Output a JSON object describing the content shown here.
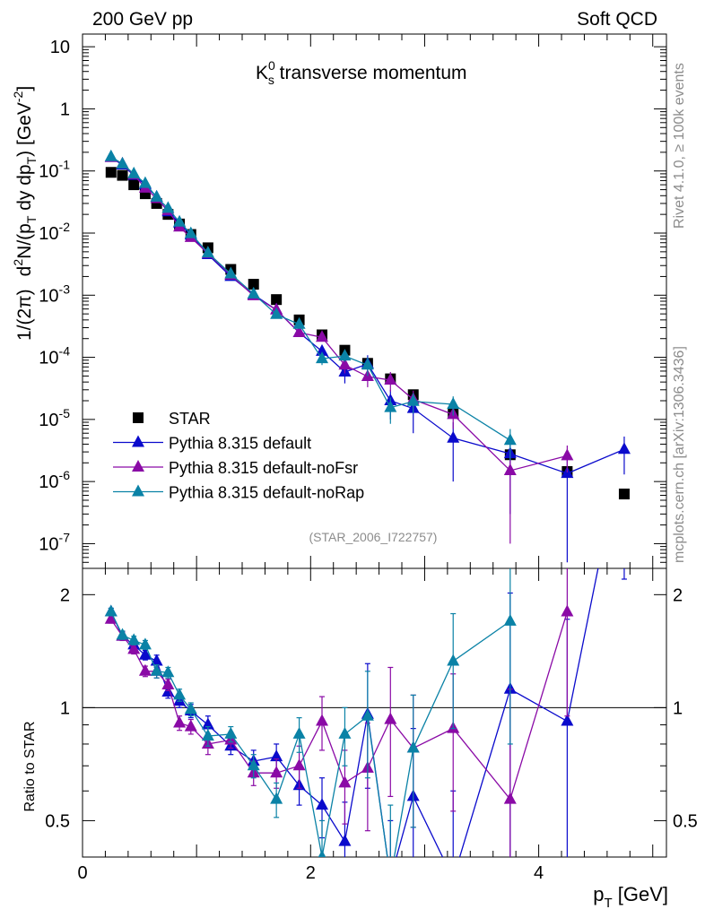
{
  "header": {
    "left": "200 GeV pp",
    "right": "Soft QCD"
  },
  "side_labels": {
    "rivet": "Rivet 4.1.0, ≥ 100k events",
    "mcplots": "mcplots.cern.ch [arXiv:1306.3436]"
  },
  "watermark": "(STAR_2006_I722757)",
  "colors": {
    "star": "#000000",
    "default": "#0a0acc",
    "noFsr": "#8a0aa6",
    "noRap": "#0a82a6"
  },
  "chart_data": [
    {
      "type": "scatter",
      "panel": "main",
      "title": "Ks0 transverse momentum",
      "title_parts": {
        "base": "K",
        "sup": "0",
        "sub": "s",
        "rest": " transverse momentum"
      },
      "ylabel_parts": {
        "prefix": "1/(2π)",
        "d": "d",
        "sup2": "2",
        "mid": "N/(p",
        "subT": "T",
        "mid2": " dy dp",
        "subT2": "T",
        "end": ") [GeV",
        "supm2": "-2",
        "close": "]"
      },
      "xlabel_parts": {
        "p": "p",
        "sub": "T",
        "unit": " [GeV]"
      },
      "yscale": "log",
      "xlim": [
        0,
        5.12
      ],
      "ylim": [
        4e-08,
        16
      ],
      "xticks": [
        0,
        2,
        4
      ],
      "xtick_labels": [
        "0",
        "2",
        "4"
      ],
      "yticks": [
        1e-07,
        1e-06,
        1e-05,
        0.0001,
        0.001,
        0.01,
        0.1,
        1,
        10
      ],
      "ytick_labels": [
        {
          "b": "10",
          "e": "-7"
        },
        {
          "b": "10",
          "e": "-6"
        },
        {
          "b": "10",
          "e": "-5"
        },
        {
          "b": "10",
          "e": "-4"
        },
        {
          "b": "10",
          "e": "-3"
        },
        {
          "b": "10",
          "e": "-2"
        },
        {
          "b": "10",
          "e": "-1"
        },
        {
          "b": "1",
          "e": ""
        },
        {
          "b": "10",
          "e": ""
        }
      ],
      "legend_position": "lower-left",
      "series": [
        {
          "name": "STAR",
          "key": "star",
          "marker": "square",
          "x": [
            0.25,
            0.35,
            0.45,
            0.55,
            0.65,
            0.75,
            0.85,
            0.95,
            1.1,
            1.3,
            1.5,
            1.7,
            1.9,
            2.1,
            2.3,
            2.5,
            2.7,
            2.9,
            3.25,
            3.75,
            4.25,
            4.75
          ],
          "y": [
            0.095,
            0.085,
            0.06,
            0.043,
            0.03,
            0.02,
            0.014,
            0.0095,
            0.0058,
            0.0026,
            0.0015,
            0.00085,
            0.0004,
            0.00023,
            0.00013,
            8e-05,
            4.5e-05,
            2.5e-05,
            1.3e-05,
            2.7e-06,
            1.45e-06,
            6.3e-07
          ]
        },
        {
          "name": "Pythia 8.315 default",
          "key": "default",
          "marker": "triangle",
          "x": [
            0.25,
            0.35,
            0.45,
            0.55,
            0.65,
            0.75,
            0.85,
            0.95,
            1.1,
            1.3,
            1.5,
            1.7,
            1.9,
            2.1,
            2.3,
            2.5,
            2.7,
            2.9,
            3.25,
            3.75,
            4.25,
            4.75
          ],
          "y": [
            0.165,
            0.125,
            0.085,
            0.06,
            0.038,
            0.022,
            0.0145,
            0.0093,
            0.0045,
            0.002,
            0.00102,
            0.00058,
            0.00025,
            0.000125,
            5.8e-05,
            7.8e-05,
            2e-05,
            1.5e-05,
            5e-06,
            2.8e-06,
            1.35e-06,
            3.3e-06
          ],
          "err": [
            0.004,
            0.003,
            0.002,
            0.0015,
            0.001,
            0.0006,
            0.0004,
            0.0003,
            0.0002,
            0.0001,
            6e-05,
            4e-05,
            3e-05,
            2e-05,
            2e-05,
            3e-05,
            1e-05,
            9e-06,
            4e-06,
            2.5e-06,
            1.3e-06,
            2e-06
          ]
        },
        {
          "name": "Pythia 8.315 default-noFsr",
          "key": "noFsr",
          "marker": "triangle",
          "x": [
            0.25,
            0.35,
            0.45,
            0.55,
            0.65,
            0.75,
            0.85,
            0.95,
            1.1,
            1.3,
            1.5,
            1.7,
            1.9,
            2.1,
            2.3,
            2.5,
            2.7,
            2.9,
            3.25,
            3.75,
            4.25
          ],
          "y": [
            0.165,
            0.13,
            0.087,
            0.053,
            0.036,
            0.023,
            0.0125,
            0.0085,
            0.0047,
            0.0021,
            0.00098,
            0.00058,
            0.00025,
            0.00021,
            7.5e-05,
            4.9e-05,
            4.3e-05,
            2.1e-05,
            1.2e-05,
            1.5e-06,
            2.6e-06
          ],
          "err": [
            0.004,
            0.003,
            0.002,
            0.0015,
            0.001,
            0.0006,
            0.0004,
            0.0003,
            0.0002,
            0.0001,
            6e-05,
            4e-05,
            3e-05,
            3e-05,
            2e-05,
            1.6e-05,
            1.5e-05,
            8e-06,
            5e-06,
            1.4e-06,
            1.2e-06
          ]
        },
        {
          "name": "Pythia 8.315 default-noRap",
          "key": "noRap",
          "marker": "triangle",
          "x": [
            0.25,
            0.35,
            0.45,
            0.55,
            0.65,
            0.75,
            0.85,
            0.95,
            1.1,
            1.3,
            1.5,
            1.7,
            1.9,
            2.1,
            2.3,
            2.5,
            2.7,
            2.9,
            3.25,
            3.75
          ],
          "y": [
            0.17,
            0.13,
            0.09,
            0.063,
            0.038,
            0.025,
            0.015,
            0.0098,
            0.0048,
            0.0022,
            0.00105,
            0.00049,
            0.00034,
            9.5e-05,
            0.000105,
            7.5e-05,
            1.55e-05,
            1.95e-05,
            1.75e-05,
            4.6e-06
          ],
          "err": [
            0.004,
            0.003,
            0.002,
            0.0015,
            0.001,
            0.0006,
            0.0004,
            0.0003,
            0.0002,
            0.0001,
            6e-05,
            4e-05,
            3e-05,
            2e-05,
            2e-05,
            2.5e-05,
            7e-06,
            7e-06,
            6e-06,
            2.4e-06
          ]
        }
      ]
    },
    {
      "type": "line",
      "panel": "ratio",
      "ylabel": "Ratio to STAR",
      "yscale": "log",
      "xlim": [
        0,
        5.12
      ],
      "ylim": [
        0.4,
        2.35
      ],
      "reference_line": 1,
      "yticks": [
        0.5,
        1,
        2
      ],
      "ytick_labels": [
        "0.5",
        "1",
        "2"
      ],
      "series": [
        {
          "name": "Pythia 8.315 default",
          "key": "default",
          "x": [
            0.25,
            0.35,
            0.45,
            0.55,
            0.65,
            0.75,
            0.85,
            0.95,
            1.1,
            1.3,
            1.5,
            1.7,
            1.9,
            2.1,
            2.3,
            2.5,
            2.7,
            2.9,
            3.25,
            3.75,
            4.25,
            4.75
          ],
          "y": [
            1.8,
            1.55,
            1.47,
            1.38,
            1.33,
            1.1,
            1.04,
            0.98,
            0.9,
            0.79,
            0.72,
            0.74,
            0.62,
            0.55,
            0.44,
            0.96,
            0.35,
            0.58,
            0.35,
            1.12,
            0.92,
            5.2
          ],
          "err": [
            0.04,
            0.04,
            0.04,
            0.04,
            0.05,
            0.04,
            0.04,
            0.04,
            0.05,
            0.04,
            0.05,
            0.06,
            0.07,
            0.1,
            0.12,
            0.35,
            0.15,
            0.3,
            0.25,
            0.9,
            0.8,
            3.0
          ]
        },
        {
          "name": "Pythia 8.315 default-noFsr",
          "key": "noFsr",
          "x": [
            0.25,
            0.35,
            0.45,
            0.55,
            0.65,
            0.75,
            0.85,
            0.95,
            1.1,
            1.3,
            1.5,
            1.7,
            1.9,
            2.1,
            2.3,
            2.5,
            2.7,
            2.9,
            3.25,
            3.75,
            4.25
          ],
          "y": [
            1.72,
            1.55,
            1.43,
            1.25,
            1.25,
            1.15,
            0.91,
            0.89,
            0.8,
            0.82,
            0.67,
            0.67,
            0.7,
            0.92,
            0.63,
            0.69,
            0.93,
            0.78,
            0.88,
            0.57,
            1.8
          ],
          "err": [
            0.04,
            0.04,
            0.04,
            0.04,
            0.05,
            0.04,
            0.04,
            0.04,
            0.05,
            0.04,
            0.05,
            0.06,
            0.09,
            0.15,
            0.14,
            0.22,
            0.35,
            0.3,
            0.35,
            0.55,
            0.85
          ]
        },
        {
          "name": "Pythia 8.315 default-noRap",
          "key": "noRap",
          "x": [
            0.25,
            0.35,
            0.45,
            0.55,
            0.65,
            0.75,
            0.85,
            0.95,
            1.1,
            1.3,
            1.5,
            1.7,
            1.9,
            2.1,
            2.3,
            2.5,
            2.7,
            2.9,
            3.25,
            3.75
          ],
          "y": [
            1.8,
            1.56,
            1.51,
            1.47,
            1.25,
            1.24,
            1.08,
            0.99,
            0.84,
            0.85,
            0.7,
            0.57,
            0.85,
            0.4,
            0.85,
            0.95,
            0.35,
            0.78,
            1.33,
            1.7
          ],
          "err": [
            0.04,
            0.04,
            0.04,
            0.04,
            0.05,
            0.04,
            0.04,
            0.04,
            0.05,
            0.04,
            0.05,
            0.06,
            0.09,
            0.1,
            0.15,
            0.3,
            0.2,
            0.3,
            0.45,
            0.9
          ]
        }
      ]
    }
  ]
}
